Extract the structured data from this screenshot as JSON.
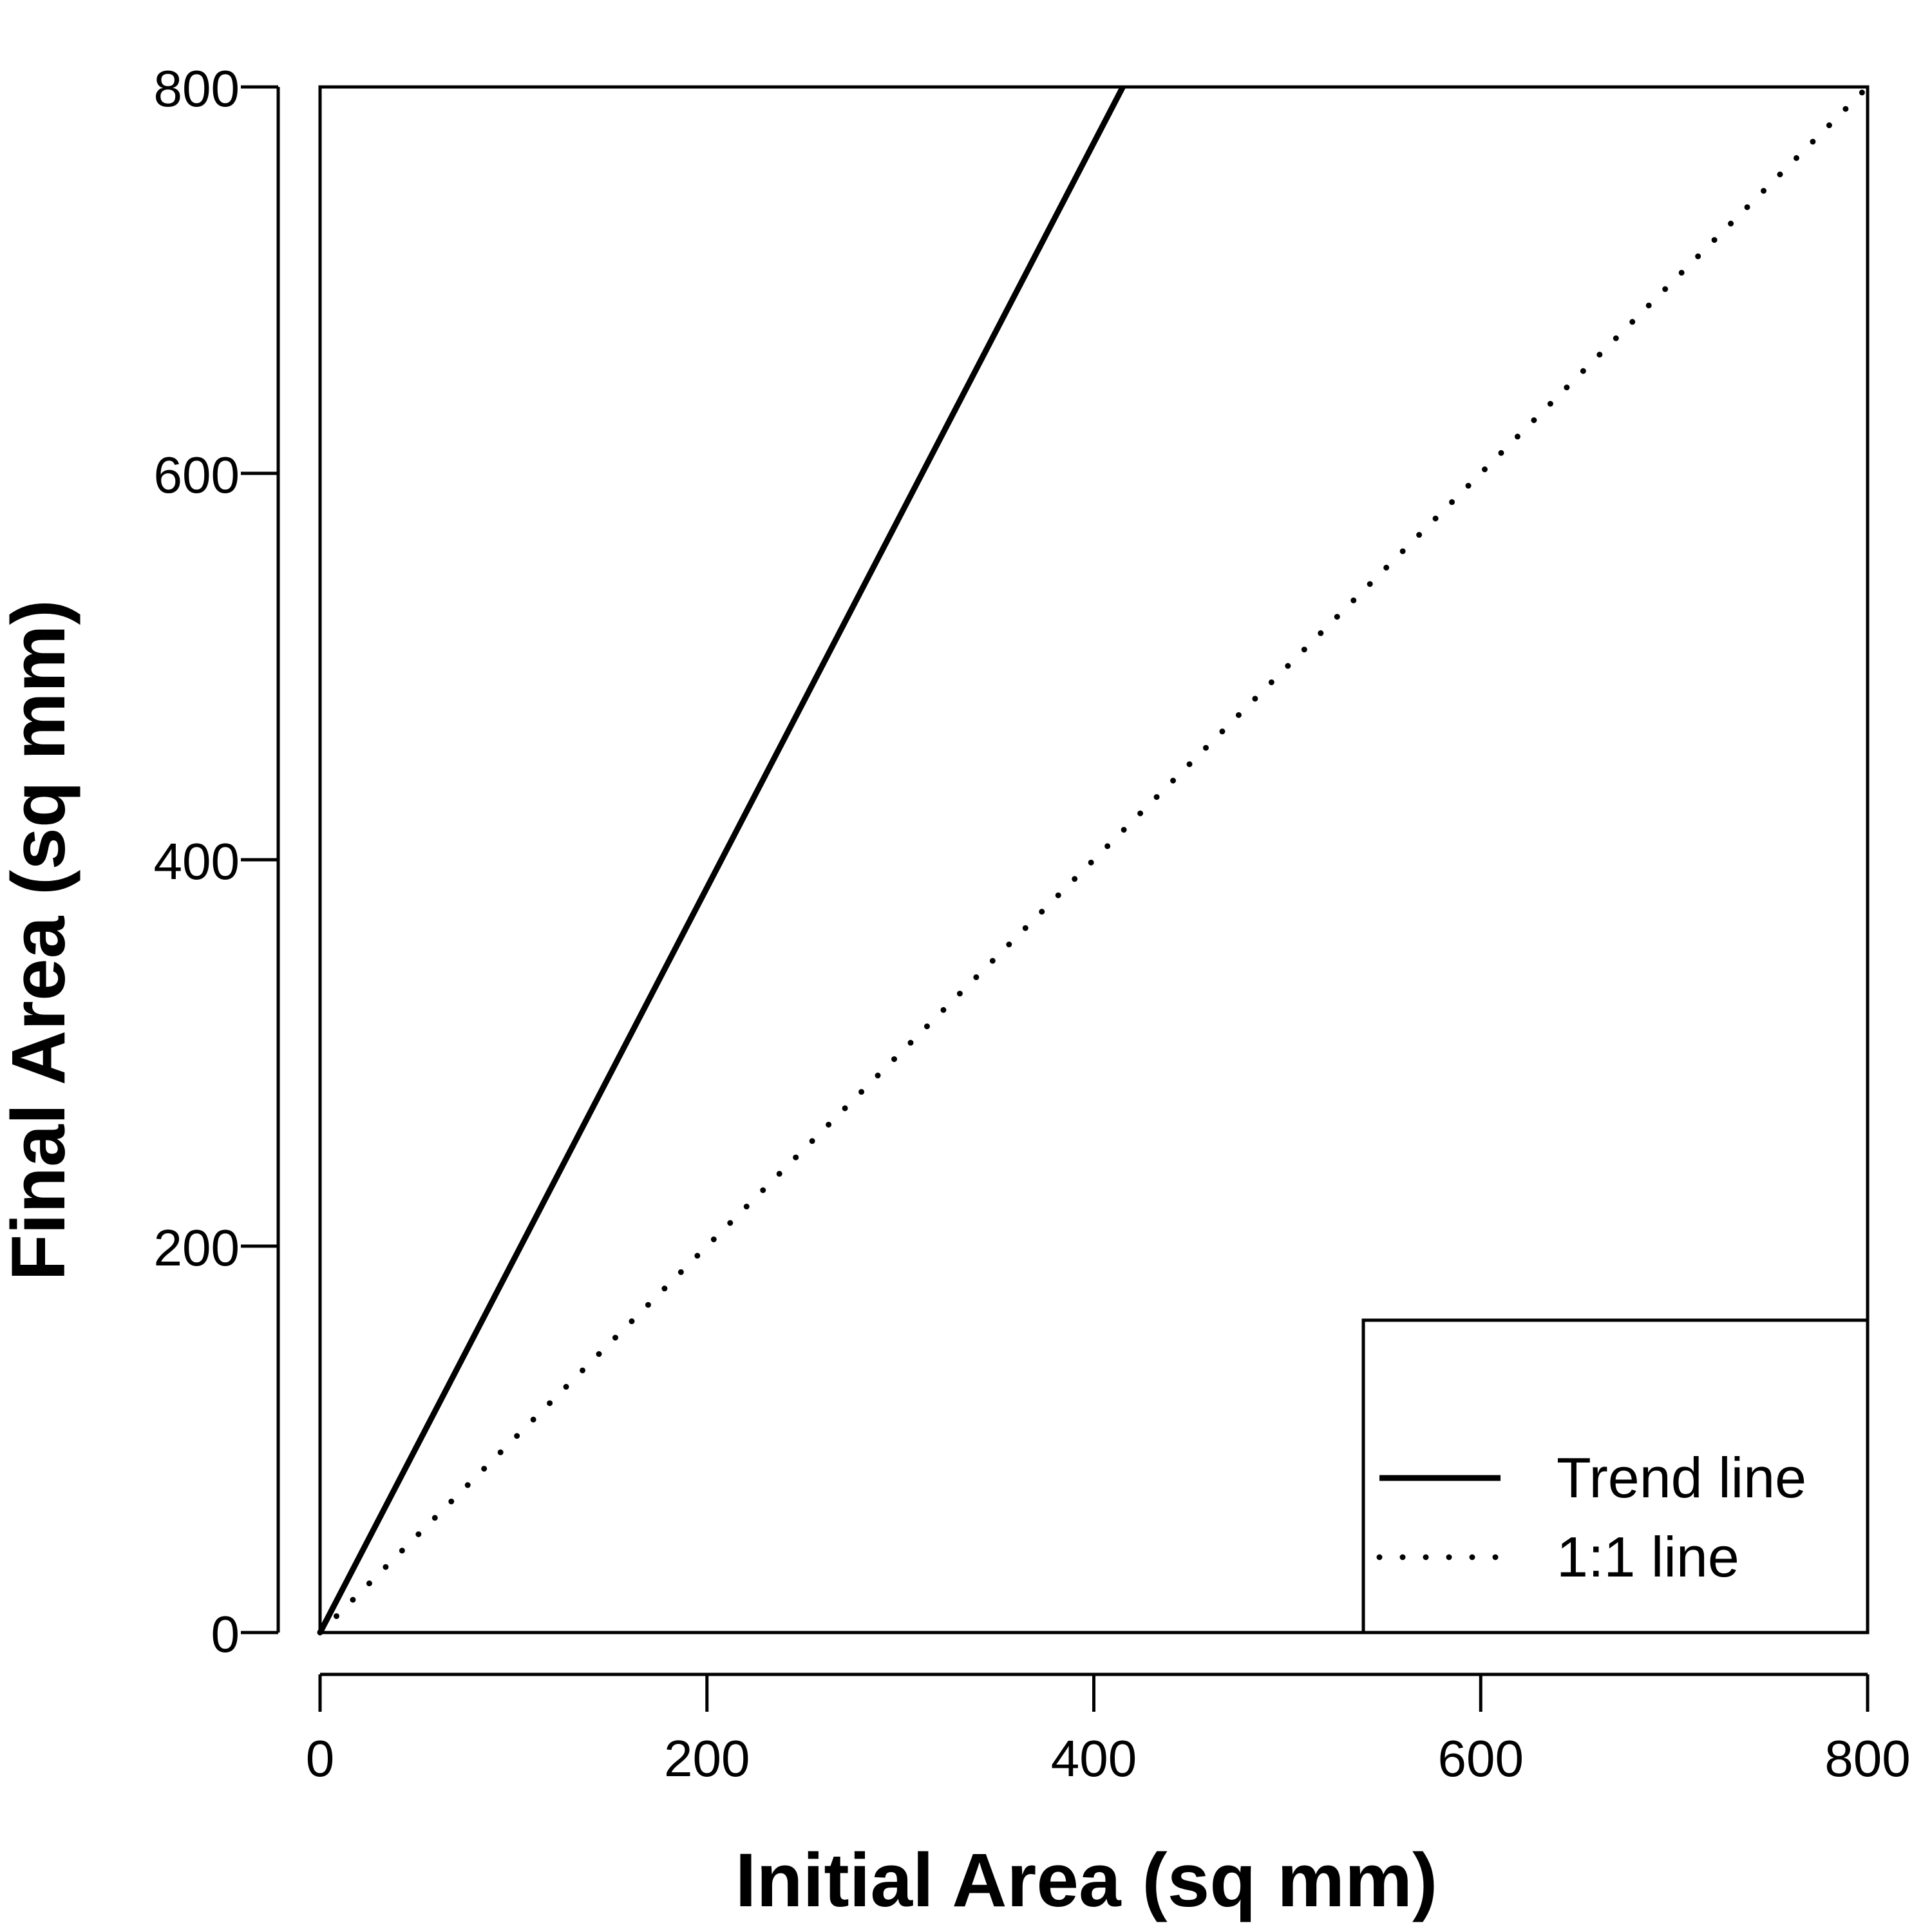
{
  "chart_data": {
    "type": "line",
    "title": "",
    "xlabel": "Initial Area (sq mm)",
    "ylabel": "Final Area (sq mm)",
    "xlim": [
      0,
      800
    ],
    "ylim": [
      0,
      800
    ],
    "xticks": [
      0,
      200,
      400,
      600,
      800
    ],
    "yticks": [
      0,
      200,
      400,
      600,
      800
    ],
    "xtick_labels": [
      "0",
      "200",
      "400",
      "600",
      "800"
    ],
    "ytick_labels": [
      "0",
      "200",
      "400",
      "600",
      "800"
    ],
    "grid": false,
    "legend_position": "bottom-right",
    "series": [
      {
        "name": "Trend line",
        "style": "solid",
        "color": "#000000",
        "x": [
          0,
          415
        ],
        "y": [
          0,
          800
        ]
      },
      {
        "name": "1:1 line",
        "style": "dotted",
        "color": "#000000",
        "x": [
          0,
          800
        ],
        "y": [
          0,
          800
        ]
      }
    ]
  }
}
